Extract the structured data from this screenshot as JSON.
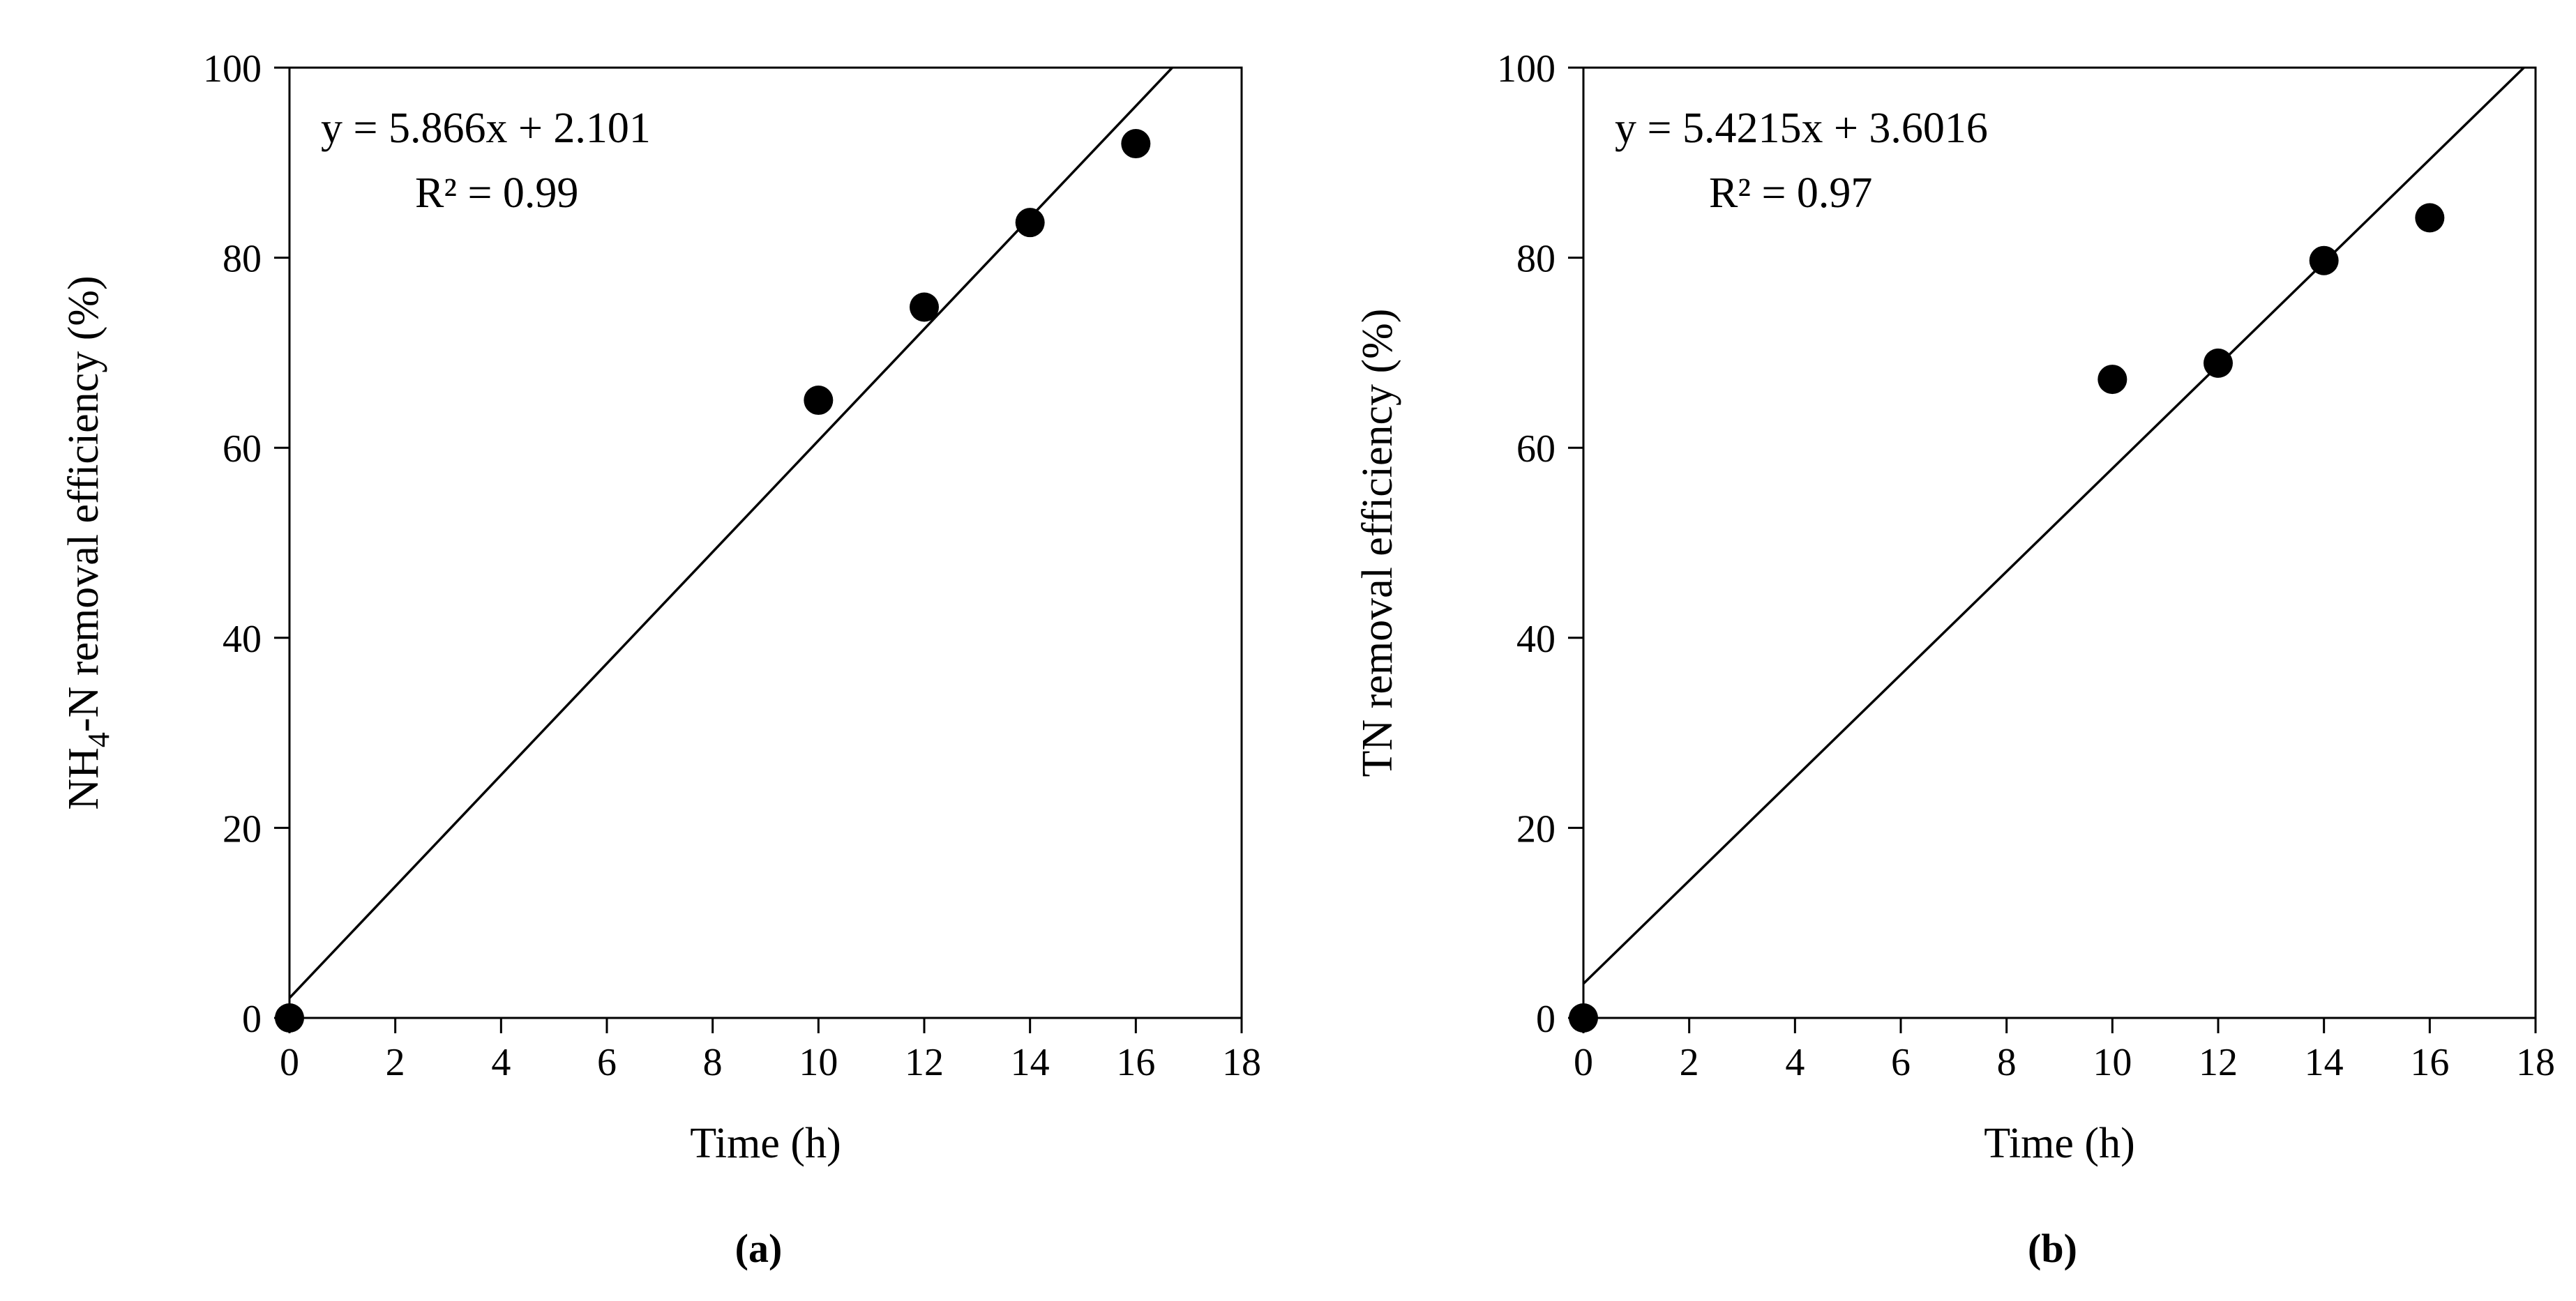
{
  "chart_data": [
    {
      "type": "scatter",
      "panel_label": "(a)",
      "xlabel": "Time (h)",
      "ylabel": {
        "prefix": "NH",
        "subscript": "4",
        "suffix": "-N removal efficiency (%)"
      },
      "xlim": [
        0,
        18
      ],
      "ylim": [
        0,
        100
      ],
      "xticks": [
        "0",
        "2",
        "4",
        "6",
        "8",
        "10",
        "12",
        "14",
        "16",
        "18"
      ],
      "yticks": [
        "0",
        "20",
        "40",
        "60",
        "80",
        "100"
      ],
      "points": [
        {
          "x": 0,
          "y": 0
        },
        {
          "x": 10,
          "y": 65
        },
        {
          "x": 12,
          "y": 74.8
        },
        {
          "x": 14,
          "y": 83.7
        },
        {
          "x": 16,
          "y": 92
        }
      ],
      "fit": {
        "slope": 5.866,
        "intercept": 2.101
      },
      "equation": "y = 5.866x + 2.101",
      "r_squared": "R² = 0.99",
      "grid": false
    },
    {
      "type": "scatter",
      "panel_label": "(b)",
      "xlabel": "Time (h)",
      "ylabel": {
        "prefix": "TN removal efficiency (%)",
        "subscript": "",
        "suffix": ""
      },
      "xlim": [
        0,
        18
      ],
      "ylim": [
        0,
        100
      ],
      "xticks": [
        "0",
        "2",
        "4",
        "6",
        "8",
        "10",
        "12",
        "14",
        "16",
        "18"
      ],
      "yticks": [
        "0",
        "20",
        "40",
        "60",
        "80",
        "100"
      ],
      "points": [
        {
          "x": 0,
          "y": 0
        },
        {
          "x": 10,
          "y": 67.2
        },
        {
          "x": 12,
          "y": 68.9
        },
        {
          "x": 14,
          "y": 79.7
        },
        {
          "x": 16,
          "y": 84.2
        }
      ],
      "fit": {
        "slope": 5.4215,
        "intercept": 3.6016
      },
      "equation": "y = 5.4215x + 3.6016",
      "r_squared": "R² = 0.97",
      "grid": false
    }
  ]
}
